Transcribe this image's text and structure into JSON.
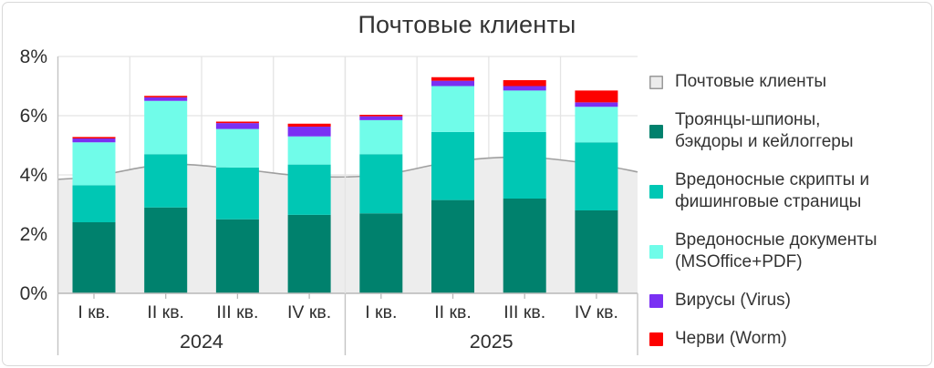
{
  "title": "Почтовые клиенты",
  "y_axis": {
    "tick_labels": [
      "8%",
      "6%",
      "4%",
      "2%",
      "0%"
    ],
    "tick_values": [
      8,
      6,
      4,
      2,
      0
    ]
  },
  "x_axis": {
    "groups": [
      {
        "year": "2024",
        "quarters": [
          "I кв.",
          "II кв.",
          "III кв.",
          "IV кв."
        ]
      },
      {
        "year": "2025",
        "quarters": [
          "I кв.",
          "II кв.",
          "III кв.",
          "IV кв."
        ]
      }
    ]
  },
  "legend": {
    "items": [
      {
        "label": "Почтовые клиенты",
        "lines": "Почтовые клиенты",
        "color": "#ececec",
        "border": "#999999"
      },
      {
        "label": "Троянцы-шпионы, бэкдоры и кейлоггеры",
        "lines": "Троянцы-шпионы,\nбэкдоры и кейлоггеры",
        "color": "#00816d",
        "border": ""
      },
      {
        "label": "Вредоносные скрипты и фишинговые страницы",
        "lines": "Вредоносные скрипты и\nфишинговые страницы",
        "color": "#00c7b4",
        "border": ""
      },
      {
        "label": "Вредоносные документы (MSOffice+PDF)",
        "lines": "Вредоносные документы\n(MSOffice+PDF)",
        "color": "#70fce9",
        "border": ""
      },
      {
        "label": "Вирусы (Virus)",
        "lines": "Вирусы (Virus)",
        "color": "#7a30f3",
        "border": ""
      },
      {
        "label": "Черви (Worm)",
        "lines": "Черви (Worm)",
        "color": "#fd0100",
        "border": ""
      }
    ]
  },
  "colors": {
    "background": "#ffffff",
    "border": "#d9d9d9",
    "text": "#333333",
    "grid": "#e4e4e4",
    "axis": "#b9b9b9",
    "bracket": "#c4c4c4",
    "area_fill": "#ededed",
    "area_line": "#9f9f9f"
  },
  "chart_data": {
    "type": "bar",
    "subtype": "stacked bars with background area series",
    "title": "Почтовые клиенты",
    "unit": "%",
    "ylim": [
      0,
      8
    ],
    "grid": true,
    "legend_position": "right",
    "categories": [
      "I кв. 2024",
      "II кв. 2024",
      "III кв. 2024",
      "IV кв. 2024",
      "I кв. 2025",
      "II кв. 2025",
      "III кв. 2025",
      "IV кв. 2025"
    ],
    "area_series": {
      "name": "Почтовые клиенты",
      "values": [
        3.95,
        4.35,
        4.2,
        3.95,
        4.0,
        4.45,
        4.6,
        4.35
      ],
      "edge_left": 3.85,
      "edge_right": 4.1
    },
    "series": [
      {
        "name": "Троянцы-шпионы, бэкдоры и кейлоггеры",
        "color": "#00816d",
        "values": [
          2.4,
          2.9,
          2.5,
          2.65,
          2.7,
          3.15,
          3.2,
          2.8
        ]
      },
      {
        "name": "Вредоносные скрипты и фишинговые страницы",
        "color": "#00c7b4",
        "values": [
          1.25,
          1.8,
          1.75,
          1.7,
          2.0,
          2.3,
          2.25,
          2.3
        ]
      },
      {
        "name": "Вредоносные документы (MSOffice+PDF)",
        "color": "#70fce9",
        "values": [
          1.45,
          1.8,
          1.3,
          0.95,
          1.15,
          1.55,
          1.4,
          1.2
        ]
      },
      {
        "name": "Вирусы (Virus)",
        "color": "#7a30f3",
        "values": [
          0.13,
          0.12,
          0.2,
          0.33,
          0.13,
          0.18,
          0.15,
          0.15
        ]
      },
      {
        "name": "Черви (Worm)",
        "color": "#fd0100",
        "values": [
          0.05,
          0.05,
          0.05,
          0.1,
          0.05,
          0.12,
          0.2,
          0.4
        ]
      }
    ]
  }
}
